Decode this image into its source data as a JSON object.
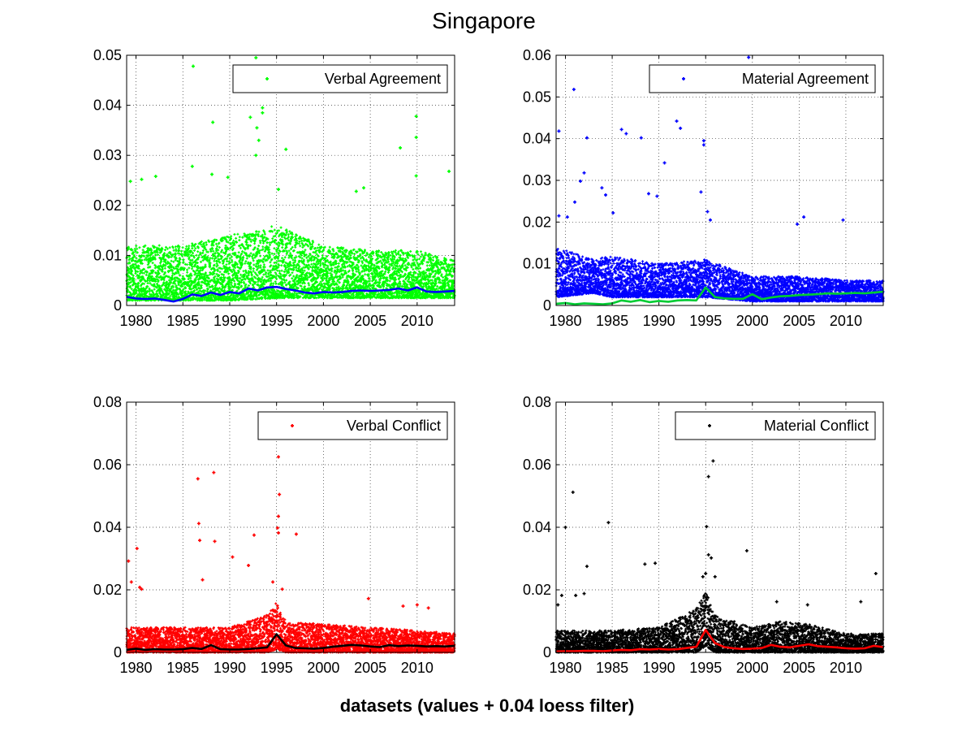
{
  "figure": {
    "title": "Singapore",
    "xlabel": "datasets (values + 0.04 loess filter)"
  },
  "chart_data": [
    {
      "type": "scatter",
      "xlim": [
        1979.0,
        2014.0
      ],
      "ylim": [
        0,
        0.05
      ],
      "xticks": [
        1980,
        1985,
        1990,
        1995,
        2000,
        2005,
        2010
      ],
      "xtick_labels": [
        "1980",
        "1985",
        "1990",
        "1995",
        "2000",
        "2005",
        "2010"
      ],
      "yticks": [
        0,
        0.01,
        0.02,
        0.03,
        0.04,
        0.05
      ],
      "ytick_labels": [
        "0",
        "0.01",
        "0.02",
        "0.03",
        "0.04",
        "0.05"
      ],
      "grid": true,
      "legend": {
        "label": "Verbal Agreement",
        "placement": "top-right"
      },
      "point_color": "#00ff00",
      "line_color": "#0000ff",
      "scatter_band": [
        [
          1979,
          0.001,
          0.012
        ],
        [
          1985,
          0.001,
          0.012
        ],
        [
          1990,
          0.001,
          0.014
        ],
        [
          1995,
          0.0015,
          0.016
        ],
        [
          2000,
          0.0015,
          0.012
        ],
        [
          2005,
          0.0015,
          0.011
        ],
        [
          2010,
          0.0015,
          0.011
        ],
        [
          2014,
          0.0015,
          0.009
        ]
      ],
      "outliers": [
        [
          1986.1,
          0.0478
        ],
        [
          1992.8,
          0.0495
        ],
        [
          1993.5,
          0.0395
        ],
        [
          1993.5,
          0.0385
        ],
        [
          1988.2,
          0.0366
        ],
        [
          1992.2,
          0.0376
        ],
        [
          1992.9,
          0.0355
        ],
        [
          1993.1,
          0.033
        ],
        [
          1992.8,
          0.03
        ],
        [
          1996.0,
          0.0312
        ],
        [
          1986.0,
          0.0278
        ],
        [
          1988.1,
          0.0262
        ],
        [
          1989.8,
          0.0256
        ],
        [
          1979.4,
          0.0248
        ],
        [
          1980.6,
          0.0252
        ],
        [
          1982.1,
          0.0258
        ],
        [
          1995.2,
          0.0232
        ],
        [
          2003.5,
          0.0228
        ],
        [
          2004.3,
          0.0235
        ],
        [
          2008.2,
          0.0315
        ],
        [
          2009.9,
          0.0378
        ],
        [
          2009.9,
          0.0336
        ],
        [
          2009.9,
          0.0259
        ],
        [
          2013.4,
          0.0268
        ]
      ],
      "loess": {
        "name": "",
        "x": [
          1979,
          1980,
          1981,
          1982,
          1983,
          1984,
          1985,
          1986,
          1987,
          1988,
          1989,
          1990,
          1991,
          1992,
          1993,
          1994,
          1995,
          1996,
          1997,
          1998,
          1999,
          2000,
          2001,
          2002,
          2003,
          2004,
          2005,
          2006,
          2007,
          2008,
          2009,
          2010,
          2011,
          2012,
          2013,
          2014
        ],
        "y": [
          0.0017,
          0.0014,
          0.0013,
          0.0014,
          0.0011,
          0.0008,
          0.0013,
          0.0022,
          0.0019,
          0.0026,
          0.0021,
          0.0027,
          0.0024,
          0.0034,
          0.003,
          0.0036,
          0.0037,
          0.0033,
          0.003,
          0.0026,
          0.0024,
          0.0027,
          0.0026,
          0.0027,
          0.0029,
          0.003,
          0.0029,
          0.003,
          0.0031,
          0.0034,
          0.003,
          0.0036,
          0.0028,
          0.0027,
          0.0028,
          0.0029
        ]
      }
    },
    {
      "type": "scatter",
      "xlim": [
        1979.0,
        2014.0
      ],
      "ylim": [
        0,
        0.06
      ],
      "xticks": [
        1980,
        1985,
        1990,
        1995,
        2000,
        2005,
        2010
      ],
      "xtick_labels": [
        "1980",
        "1985",
        "1990",
        "1995",
        "2000",
        "2005",
        "2010"
      ],
      "yticks": [
        0,
        0.01,
        0.02,
        0.03,
        0.04,
        0.05,
        0.06
      ],
      "ytick_labels": [
        "0",
        "0.01",
        "0.02",
        "0.03",
        "0.04",
        "0.05",
        "0.06"
      ],
      "grid": true,
      "legend": {
        "label": "Material Agreement",
        "placement": "top-right"
      },
      "point_color": "#0000ff",
      "line_color": "#00cc33",
      "scatter_band": [
        [
          1979,
          0.002,
          0.014
        ],
        [
          1983,
          0.003,
          0.011
        ],
        [
          1985,
          0.002,
          0.012
        ],
        [
          1990,
          0.002,
          0.01
        ],
        [
          1995,
          0.002,
          0.011
        ],
        [
          2000,
          0.001,
          0.007
        ],
        [
          2005,
          0.001,
          0.007
        ],
        [
          2010,
          0.001,
          0.006
        ],
        [
          2014,
          0.001,
          0.006
        ]
      ],
      "outliers": [
        [
          1999.6,
          0.0595
        ],
        [
          1980.9,
          0.0518
        ],
        [
          1979.3,
          0.0418
        ],
        [
          1982.3,
          0.0402
        ],
        [
          1986.0,
          0.0422
        ],
        [
          1986.5,
          0.0412
        ],
        [
          1988.1,
          0.0402
        ],
        [
          1991.9,
          0.0442
        ],
        [
          1992.3,
          0.0425
        ],
        [
          1994.8,
          0.0395
        ],
        [
          1994.8,
          0.0385
        ],
        [
          1990.6,
          0.0342
        ],
        [
          1979.3,
          0.0215
        ],
        [
          1980.2,
          0.0212
        ],
        [
          1981.0,
          0.0248
        ],
        [
          1981.6,
          0.0298
        ],
        [
          1982.0,
          0.0318
        ],
        [
          1983.9,
          0.0282
        ],
        [
          1984.3,
          0.0265
        ],
        [
          1985.1,
          0.0222
        ],
        [
          1988.9,
          0.0268
        ],
        [
          1989.8,
          0.0262
        ],
        [
          1994.5,
          0.0272
        ],
        [
          2005.5,
          0.0212
        ],
        [
          2004.8,
          0.0195
        ],
        [
          2009.7,
          0.0205
        ],
        [
          1995.2,
          0.0225
        ],
        [
          1995.5,
          0.0205
        ]
      ],
      "loess": {
        "name": "",
        "x": [
          1979,
          1980,
          1981,
          1982,
          1983,
          1984,
          1985,
          1986,
          1987,
          1988,
          1989,
          1990,
          1991,
          1992,
          1993,
          1994,
          1995,
          1996,
          1997,
          1998,
          1999,
          2000,
          2001,
          2002,
          2003,
          2004,
          2005,
          2006,
          2007,
          2008,
          2009,
          2010,
          2011,
          2012,
          2013,
          2014
        ],
        "y": [
          0.0004,
          0.0006,
          0.0003,
          0.0005,
          0.0004,
          0.0003,
          0.0005,
          0.0012,
          0.0009,
          0.0013,
          0.0008,
          0.0011,
          0.0009,
          0.0012,
          0.0013,
          0.0012,
          0.0043,
          0.002,
          0.0017,
          0.0016,
          0.0016,
          0.0027,
          0.0015,
          0.0019,
          0.0022,
          0.0023,
          0.0025,
          0.0026,
          0.0027,
          0.0029,
          0.0028,
          0.0029,
          0.003,
          0.0029,
          0.0031,
          0.0033
        ]
      }
    },
    {
      "type": "scatter",
      "xlim": [
        1979.0,
        2014.0
      ],
      "ylim": [
        0,
        0.08
      ],
      "xticks": [
        1980,
        1985,
        1990,
        1995,
        2000,
        2005,
        2010
      ],
      "xtick_labels": [
        "1980",
        "1985",
        "1990",
        "1995",
        "2000",
        "2005",
        "2010"
      ],
      "yticks": [
        0,
        0.02,
        0.04,
        0.06,
        0.08
      ],
      "ytick_labels": [
        "0",
        "0.02",
        "0.04",
        "0.06",
        "0.08"
      ],
      "grid": true,
      "legend": {
        "label": "Verbal Conflict",
        "placement": "top-right"
      },
      "point_color": "#ff0000",
      "line_color": "#000000",
      "scatter_band": [
        [
          1979,
          0.0,
          0.008
        ],
        [
          1985,
          0.0,
          0.008
        ],
        [
          1990,
          0.0,
          0.008
        ],
        [
          1994,
          0.0,
          0.012
        ],
        [
          1995,
          0.001,
          0.016
        ],
        [
          1996,
          0.0,
          0.01
        ],
        [
          2000,
          0.0,
          0.009
        ],
        [
          2005,
          0.0,
          0.008
        ],
        [
          2010,
          0.0,
          0.007
        ],
        [
          2014,
          0.0,
          0.006
        ]
      ],
      "outliers": [
        [
          1995.2,
          0.0625
        ],
        [
          1988.3,
          0.0575
        ],
        [
          1986.6,
          0.0555
        ],
        [
          1995.3,
          0.0505
        ],
        [
          1995.2,
          0.0435
        ],
        [
          1986.7,
          0.0412
        ],
        [
          1995.1,
          0.0398
        ],
        [
          1995.2,
          0.0382
        ],
        [
          1997.1,
          0.0378
        ],
        [
          1992.6,
          0.0375
        ],
        [
          1988.4,
          0.0355
        ],
        [
          1986.8,
          0.0358
        ],
        [
          1980.1,
          0.0332
        ],
        [
          1979.2,
          0.0292
        ],
        [
          1992.0,
          0.0278
        ],
        [
          1990.3,
          0.0305
        ],
        [
          1979.5,
          0.0225
        ],
        [
          1980.4,
          0.0208
        ],
        [
          1980.6,
          0.0202
        ],
        [
          1994.6,
          0.0225
        ],
        [
          1995.6,
          0.0202
        ],
        [
          1987.1,
          0.0232
        ],
        [
          2004.8,
          0.0172
        ],
        [
          2010.0,
          0.0152
        ],
        [
          2011.2,
          0.0142
        ],
        [
          2008.5,
          0.0148
        ]
      ],
      "loess": {
        "name": "",
        "x": [
          1979,
          1980,
          1981,
          1982,
          1983,
          1984,
          1985,
          1986,
          1987,
          1988,
          1989,
          1990,
          1991,
          1992,
          1993,
          1994,
          1995,
          1996,
          1997,
          1998,
          1999,
          2000,
          2001,
          2002,
          2003,
          2004,
          2005,
          2006,
          2007,
          2008,
          2009,
          2010,
          2011,
          2012,
          2013,
          2014
        ],
        "y": [
          0.0008,
          0.0012,
          0.0008,
          0.001,
          0.0009,
          0.0009,
          0.001,
          0.0014,
          0.0011,
          0.0023,
          0.001,
          0.0009,
          0.0009,
          0.0011,
          0.0013,
          0.0016,
          0.0058,
          0.0022,
          0.0014,
          0.0013,
          0.0012,
          0.0014,
          0.0018,
          0.0021,
          0.0024,
          0.0022,
          0.0019,
          0.0017,
          0.0023,
          0.002,
          0.0022,
          0.0021,
          0.0019,
          0.002,
          0.0019,
          0.0021
        ]
      }
    },
    {
      "type": "scatter",
      "xlim": [
        1979.0,
        2014.0
      ],
      "ylim": [
        0,
        0.08
      ],
      "xticks": [
        1980,
        1985,
        1990,
        1995,
        2000,
        2005,
        2010
      ],
      "xtick_labels": [
        "1980",
        "1985",
        "1990",
        "1995",
        "2000",
        "2005",
        "2010"
      ],
      "yticks": [
        0,
        0.02,
        0.04,
        0.06,
        0.08
      ],
      "ytick_labels": [
        "0",
        "0.02",
        "0.04",
        "0.06",
        "0.08"
      ],
      "grid": true,
      "legend": {
        "label": "Material Conflict",
        "placement": "top-right"
      },
      "point_color": "#000000",
      "line_color": "#ff0000",
      "scatter_band": [
        [
          1979,
          0.0,
          0.007
        ],
        [
          1985,
          0.0,
          0.007
        ],
        [
          1990,
          0.0,
          0.008
        ],
        [
          1994,
          0.0,
          0.014
        ],
        [
          1995,
          0.002,
          0.02
        ],
        [
          1996,
          0.0,
          0.012
        ],
        [
          2000,
          0.0,
          0.008
        ],
        [
          2003,
          0.0,
          0.01
        ],
        [
          2006,
          0.0,
          0.009
        ],
        [
          2010,
          0.0,
          0.006
        ],
        [
          2014,
          0.0,
          0.006
        ]
      ],
      "outliers": [
        [
          1995.8,
          0.0612
        ],
        [
          1995.3,
          0.0562
        ],
        [
          1980.8,
          0.0512
        ],
        [
          1984.6,
          0.0415
        ],
        [
          1980.0,
          0.04
        ],
        [
          1995.1,
          0.0402
        ],
        [
          1999.4,
          0.0325
        ],
        [
          1995.3,
          0.0312
        ],
        [
          1995.6,
          0.0302
        ],
        [
          1988.5,
          0.0282
        ],
        [
          1989.6,
          0.0285
        ],
        [
          1982.3,
          0.0275
        ],
        [
          2013.2,
          0.0252
        ],
        [
          1994.7,
          0.0242
        ],
        [
          1995.0,
          0.0252
        ],
        [
          1996.0,
          0.0242
        ],
        [
          1979.2,
          0.0152
        ],
        [
          1979.6,
          0.0182
        ],
        [
          1981.1,
          0.0182
        ],
        [
          1982.0,
          0.0188
        ],
        [
          2002.6,
          0.0162
        ],
        [
          2011.6,
          0.0162
        ],
        [
          2005.9,
          0.0152
        ]
      ],
      "loess": {
        "name": "",
        "x": [
          1979,
          1980,
          1981,
          1982,
          1983,
          1984,
          1985,
          1986,
          1987,
          1988,
          1989,
          1990,
          1991,
          1992,
          1993,
          1994,
          1995,
          1996,
          1997,
          1998,
          1999,
          2000,
          2001,
          2002,
          2003,
          2004,
          2005,
          2006,
          2007,
          2008,
          2009,
          2010,
          2011,
          2012,
          2013,
          2014
        ],
        "y": [
          0.0003,
          0.0004,
          0.0004,
          0.0005,
          0.0005,
          0.0004,
          0.0006,
          0.0008,
          0.0007,
          0.001,
          0.0009,
          0.0011,
          0.0009,
          0.001,
          0.0014,
          0.0018,
          0.0072,
          0.003,
          0.0017,
          0.0013,
          0.0011,
          0.0012,
          0.0014,
          0.0024,
          0.0018,
          0.0016,
          0.0021,
          0.0026,
          0.002,
          0.0018,
          0.0016,
          0.0013,
          0.0012,
          0.0013,
          0.0021,
          0.0017
        ]
      }
    }
  ]
}
